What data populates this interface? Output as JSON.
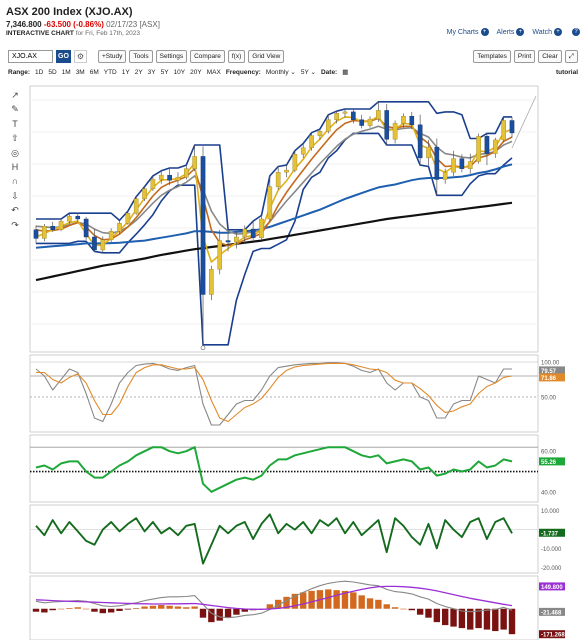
{
  "header": {
    "title": "ASX 200 Index (XJO.AX)",
    "price": "7,346.800",
    "change": "-63.500 (-0.86%)",
    "meta": "02/17/23 [ASX]",
    "subtitle": "INTERACTIVE CHART",
    "subtitle_date": "for Fri, Feb 17th, 2023"
  },
  "toplinks": {
    "mycharts": "My Charts",
    "alerts": "Alerts",
    "watch": "Watch",
    "help": "?"
  },
  "toolbar": {
    "symbol": "XJO.AX",
    "go": "GO",
    "gear": "⚙",
    "buttons": [
      "+Study",
      "Tools",
      "Settings",
      "Compare",
      "f(x)",
      "Grid View"
    ],
    "right_buttons": [
      "Templates",
      "Print",
      "Clear",
      "⤢"
    ]
  },
  "rangebar": {
    "range_label": "Range:",
    "ranges": [
      "1D",
      "5D",
      "1M",
      "3M",
      "6M",
      "YTD",
      "1Y",
      "2Y",
      "3Y",
      "5Y",
      "10Y",
      "20Y",
      "MAX"
    ],
    "frequency_label": "Frequency:",
    "frequency": "Monthly ⌄",
    "period": "5Y ⌄",
    "date_label": "Date:",
    "tutorial": "tutorial"
  },
  "tools": [
    "↗",
    "✎",
    "T",
    "⇧",
    "◎",
    "H",
    "∩",
    "⇩",
    "↶",
    "↷"
  ],
  "chart_data": [
    {
      "type": "candlestick",
      "panel": "price",
      "candles": [
        {
          "o": 6000,
          "h": 6060,
          "l": 5810,
          "c": 5880
        },
        {
          "o": 5880,
          "h": 6080,
          "l": 5840,
          "c": 6050
        },
        {
          "o": 6050,
          "h": 6110,
          "l": 5970,
          "c": 6000
        },
        {
          "o": 6000,
          "h": 6160,
          "l": 5980,
          "c": 6120
        },
        {
          "o": 6120,
          "h": 6230,
          "l": 6080,
          "c": 6190
        },
        {
          "o": 6190,
          "h": 6240,
          "l": 6110,
          "c": 6150
        },
        {
          "o": 6150,
          "h": 6180,
          "l": 5860,
          "c": 5900
        },
        {
          "o": 5900,
          "h": 6010,
          "l": 5700,
          "c": 5720
        },
        {
          "o": 5720,
          "h": 5910,
          "l": 5680,
          "c": 5860
        },
        {
          "o": 5860,
          "h": 6020,
          "l": 5820,
          "c": 5980
        },
        {
          "o": 5980,
          "h": 6130,
          "l": 5940,
          "c": 6090
        },
        {
          "o": 6090,
          "h": 6260,
          "l": 6070,
          "c": 6230
        },
        {
          "o": 6230,
          "h": 6460,
          "l": 6210,
          "c": 6430
        },
        {
          "o": 6430,
          "h": 6600,
          "l": 6400,
          "c": 6570
        },
        {
          "o": 6570,
          "h": 6750,
          "l": 6540,
          "c": 6700
        },
        {
          "o": 6700,
          "h": 6820,
          "l": 6640,
          "c": 6760
        },
        {
          "o": 6760,
          "h": 6860,
          "l": 6620,
          "c": 6690
        },
        {
          "o": 6690,
          "h": 6800,
          "l": 6640,
          "c": 6730
        },
        {
          "o": 6730,
          "h": 6900,
          "l": 6700,
          "c": 6850
        },
        {
          "o": 6850,
          "h": 7180,
          "l": 6820,
          "c": 7020
        },
        {
          "o": 7020,
          "h": 7160,
          "l": 4400,
          "c": 5100
        },
        {
          "o": 5100,
          "h": 5500,
          "l": 5020,
          "c": 5450
        },
        {
          "o": 5450,
          "h": 6000,
          "l": 5380,
          "c": 5850
        },
        {
          "o": 5850,
          "h": 5990,
          "l": 5700,
          "c": 5830
        },
        {
          "o": 5830,
          "h": 5980,
          "l": 5740,
          "c": 5900
        },
        {
          "o": 5900,
          "h": 6060,
          "l": 5800,
          "c": 6010
        },
        {
          "o": 6010,
          "h": 6120,
          "l": 5860,
          "c": 5890
        },
        {
          "o": 5890,
          "h": 6200,
          "l": 5860,
          "c": 6150
        },
        {
          "o": 6150,
          "h": 6750,
          "l": 6120,
          "c": 6600
        },
        {
          "o": 6600,
          "h": 6880,
          "l": 6560,
          "c": 6800
        },
        {
          "o": 6800,
          "h": 6900,
          "l": 6730,
          "c": 6830
        },
        {
          "o": 6830,
          "h": 7100,
          "l": 6800,
          "c": 7050
        },
        {
          "o": 7050,
          "h": 7200,
          "l": 7000,
          "c": 7140
        },
        {
          "o": 7140,
          "h": 7350,
          "l": 7100,
          "c": 7310
        },
        {
          "o": 7310,
          "h": 7400,
          "l": 7250,
          "c": 7370
        },
        {
          "o": 7370,
          "h": 7600,
          "l": 7340,
          "c": 7530
        },
        {
          "o": 7530,
          "h": 7650,
          "l": 7480,
          "c": 7620
        },
        {
          "o": 7620,
          "h": 7680,
          "l": 7560,
          "c": 7640
        },
        {
          "o": 7640,
          "h": 7680,
          "l": 7480,
          "c": 7530
        },
        {
          "o": 7530,
          "h": 7600,
          "l": 7410,
          "c": 7450
        },
        {
          "o": 7450,
          "h": 7580,
          "l": 7420,
          "c": 7540
        },
        {
          "o": 7540,
          "h": 7780,
          "l": 7500,
          "c": 7660
        },
        {
          "o": 7660,
          "h": 7750,
          "l": 7180,
          "c": 7260
        },
        {
          "o": 7260,
          "h": 7520,
          "l": 7200,
          "c": 7480
        },
        {
          "o": 7480,
          "h": 7620,
          "l": 7420,
          "c": 7580
        },
        {
          "o": 7580,
          "h": 7640,
          "l": 7400,
          "c": 7460
        },
        {
          "o": 7460,
          "h": 7600,
          "l": 6900,
          "c": 7000
        },
        {
          "o": 7000,
          "h": 7250,
          "l": 6880,
          "c": 7150
        },
        {
          "o": 7150,
          "h": 7270,
          "l": 6480,
          "c": 6700
        },
        {
          "o": 6700,
          "h": 6850,
          "l": 6640,
          "c": 6800
        },
        {
          "o": 6800,
          "h": 7100,
          "l": 6750,
          "c": 6990
        },
        {
          "o": 6990,
          "h": 7050,
          "l": 6800,
          "c": 6850
        },
        {
          "o": 6850,
          "h": 7060,
          "l": 6780,
          "c": 6950
        },
        {
          "o": 6950,
          "h": 7340,
          "l": 6920,
          "c": 7300
        },
        {
          "o": 7300,
          "h": 7340,
          "l": 6900,
          "c": 7060
        },
        {
          "o": 7060,
          "h": 7280,
          "l": 7000,
          "c": 7250
        },
        {
          "o": 7250,
          "h": 7570,
          "l": 7220,
          "c": 7520
        },
        {
          "o": 7520,
          "h": 7570,
          "l": 7280,
          "c": 7347
        }
      ],
      "ma_gold": [
        5900,
        5950,
        6000,
        6050,
        6100,
        6120,
        5950,
        5780,
        5790,
        5880,
        5990,
        6110,
        6280,
        6440,
        6590,
        6690,
        6700,
        6710,
        6780,
        6930,
        5900,
        5550,
        5650,
        5740,
        5820,
        5900,
        5920,
        6000,
        6300,
        6550,
        6680,
        6850,
        6980,
        7150,
        7260,
        7400,
        7510,
        7570,
        7560,
        7500,
        7510,
        7580,
        7380,
        7400,
        7480,
        7470,
        7180,
        7130,
        6850,
        6800,
        6880,
        6860,
        6900,
        7100,
        7080,
        7150,
        7350,
        7400
      ],
      "ma_orange": [
        6000,
        5980,
        5990,
        6010,
        6060,
        6100,
        6040,
        5920,
        5860,
        5870,
        5940,
        6040,
        6170,
        6320,
        6470,
        6590,
        6650,
        6690,
        6740,
        6850,
        6450,
        6000,
        5820,
        5780,
        5800,
        5860,
        5900,
        5950,
        6120,
        6340,
        6520,
        6680,
        6830,
        6980,
        7120,
        7260,
        7390,
        7480,
        7520,
        7510,
        7510,
        7550,
        7440,
        7410,
        7440,
        7440,
        7290,
        7200,
        6990,
        6880,
        6890,
        6870,
        6880,
        7000,
        7030,
        7090,
        7230,
        7290
      ],
      "ma_gray": [
        6050,
        6040,
        6030,
        6040,
        6070,
        6100,
        6080,
        6010,
        5960,
        5950,
        5980,
        6040,
        6130,
        6250,
        6370,
        6480,
        6550,
        6600,
        6660,
        6750,
        6560,
        6260,
        6080,
        5980,
        5940,
        5950,
        5970,
        6000,
        6110,
        6260,
        6400,
        6530,
        6660,
        6790,
        6920,
        7040,
        7160,
        7260,
        7330,
        7370,
        7400,
        7440,
        7400,
        7390,
        7410,
        7420,
        7340,
        7290,
        7150,
        7060,
        7040,
        7010,
        7000,
        7050,
        7060,
        7090,
        7180,
        7230
      ],
      "ma_blue": [
        5750,
        5760,
        5770,
        5780,
        5790,
        5800,
        5810,
        5810,
        5810,
        5815,
        5820,
        5830,
        5840,
        5850,
        5870,
        5890,
        5910,
        5930,
        5950,
        5980,
        5980,
        5970,
        5960,
        5960,
        5970,
        5980,
        5990,
        6010,
        6040,
        6080,
        6120,
        6160,
        6200,
        6240,
        6280,
        6330,
        6380,
        6430,
        6470,
        6510,
        6550,
        6590,
        6610,
        6630,
        6660,
        6690,
        6710,
        6720,
        6720,
        6720,
        6730,
        6740,
        6760,
        6790,
        6810,
        6840,
        6880,
        6910
      ],
      "ma_black": [
        5300,
        5325,
        5350,
        5375,
        5400,
        5425,
        5450,
        5475,
        5500,
        5520,
        5540,
        5560,
        5580,
        5600,
        5625,
        5650,
        5670,
        5690,
        5710,
        5730,
        5745,
        5760,
        5775,
        5790,
        5805,
        5820,
        5835,
        5850,
        5870,
        5890,
        5910,
        5930,
        5950,
        5970,
        5990,
        6010,
        6030,
        6050,
        6070,
        6090,
        6110,
        6130,
        6150,
        6165,
        6180,
        6195,
        6210,
        6225,
        6240,
        6255,
        6270,
        6285,
        6300,
        6315,
        6330,
        6345,
        6360,
        6375
      ],
      "channel_upper": [
        6150,
        6150,
        6150,
        6150,
        6230,
        6230,
        6230,
        6230,
        6230,
        6230,
        6130,
        6260,
        6460,
        6600,
        6750,
        6820,
        6860,
        6860,
        6900,
        7180,
        7180,
        7180,
        7180,
        6000,
        6000,
        6000,
        6120,
        6200,
        6750,
        6880,
        6900,
        7100,
        7200,
        7350,
        7400,
        7600,
        7650,
        7680,
        7680,
        7680,
        7680,
        7780,
        7780,
        7780,
        7780,
        7780,
        7780,
        7780,
        7620,
        7640,
        7640,
        7600,
        7270,
        7270,
        7340,
        7340,
        7570,
        7570
      ],
      "channel_lower": [
        5810,
        5810,
        5810,
        5810,
        5810,
        5840,
        5840,
        5700,
        5680,
        5680,
        5680,
        5820,
        5940,
        6070,
        6210,
        6400,
        6540,
        6620,
        6620,
        6620,
        4400,
        4400,
        4400,
        4400,
        5020,
        5380,
        5700,
        5740,
        5740,
        5800,
        5860,
        6120,
        6560,
        6730,
        6800,
        7000,
        7100,
        7250,
        7340,
        7340,
        7340,
        7340,
        7180,
        7180,
        7180,
        7180,
        6900,
        6880,
        6480,
        6480,
        6480,
        6480,
        6640,
        6750,
        6780,
        6780,
        6900,
        7000
      ],
      "ylim": [
        4300,
        8000
      ]
    },
    {
      "type": "line",
      "panel": "stochastic",
      "axis_labels": [
        "100.00",
        "50.00"
      ],
      "value_labels": [
        "79.57",
        "71.86"
      ],
      "series_gray": [
        90,
        80,
        60,
        75,
        90,
        85,
        55,
        20,
        15,
        40,
        70,
        85,
        95,
        97,
        98,
        95,
        90,
        88,
        92,
        95,
        40,
        10,
        10,
        25,
        40,
        45,
        45,
        60,
        80,
        92,
        94,
        96,
        97,
        98,
        98,
        99,
        99,
        98,
        94,
        88,
        85,
        90,
        70,
        60,
        70,
        70,
        50,
        45,
        20,
        20,
        40,
        45,
        45,
        80,
        75,
        70,
        90,
        90
      ],
      "series_orange": [
        85,
        85,
        75,
        70,
        78,
        83,
        70,
        45,
        25,
        25,
        40,
        65,
        85,
        92,
        96,
        96,
        93,
        90,
        90,
        92,
        75,
        45,
        20,
        15,
        25,
        35,
        40,
        48,
        62,
        78,
        88,
        93,
        95,
        96,
        97,
        98,
        98,
        98,
        96,
        93,
        90,
        89,
        85,
        74,
        70,
        70,
        62,
        52,
        38,
        28,
        30,
        36,
        40,
        55,
        65,
        70,
        78,
        80
      ],
      "ylim": [
        0,
        110
      ]
    },
    {
      "type": "line",
      "panel": "rsi",
      "axis_labels": [
        "60.00",
        "40.00"
      ],
      "value_labels": [
        "55.26"
      ],
      "series": [
        52,
        53,
        51,
        54,
        55,
        55,
        50,
        47,
        47,
        50,
        53,
        55,
        58,
        60,
        62,
        62,
        60,
        59,
        60,
        62,
        44,
        40,
        42,
        44,
        46,
        47,
        46,
        48,
        53,
        56,
        56,
        58,
        59,
        60,
        61,
        62,
        62,
        62,
        60,
        58,
        57,
        58,
        54,
        55,
        56,
        55,
        51,
        52,
        48,
        49,
        51,
        50,
        51,
        55,
        52,
        53,
        56,
        55
      ],
      "ylim": [
        35,
        68
      ]
    },
    {
      "type": "line",
      "panel": "oscillator",
      "axis_labels": [
        "10.000",
        "-10.000",
        "-20.000"
      ],
      "value_labels": [
        "-1.737"
      ],
      "series": [
        2,
        -3,
        5,
        -2,
        4,
        -1,
        -6,
        -8,
        0,
        4,
        -1,
        3,
        6,
        -1,
        4,
        -2,
        1,
        -3,
        2,
        3,
        -18,
        -8,
        2,
        -2,
        2,
        4,
        -5,
        3,
        8,
        -2,
        3,
        0,
        4,
        -2,
        5,
        2,
        6,
        -2,
        4,
        -3,
        1,
        5,
        -12,
        6,
        2,
        -4,
        -8,
        3,
        -10,
        5,
        0,
        -4,
        4,
        6,
        -5,
        4,
        6,
        -2
      ],
      "ylim": [
        -23,
        13
      ]
    },
    {
      "type": "bar",
      "panel": "macd",
      "value_labels": [
        "149.800",
        "-21.468",
        "-171.268"
      ],
      "histogram": [
        -20,
        -25,
        -10,
        0,
        5,
        10,
        0,
        -20,
        -30,
        -25,
        -15,
        -5,
        5,
        15,
        20,
        25,
        20,
        15,
        10,
        15,
        -60,
        -90,
        -80,
        -60,
        -40,
        -20,
        -10,
        0,
        30,
        60,
        80,
        100,
        110,
        120,
        125,
        130,
        125,
        120,
        110,
        90,
        70,
        60,
        30,
        10,
        0,
        -10,
        -40,
        -60,
        -90,
        -110,
        -120,
        -130,
        -140,
        -130,
        -140,
        -150,
        -140,
        -171
      ],
      "signal_purple": [
        60,
        58,
        55,
        52,
        50,
        48,
        46,
        44,
        42,
        40,
        38,
        36,
        34,
        33,
        32,
        32,
        33,
        33,
        34,
        35,
        30,
        22,
        15,
        8,
        2,
        -2,
        -4,
        -4,
        -2,
        2,
        10,
        20,
        32,
        46,
        60,
        75,
        90,
        105,
        118,
        130,
        140,
        148,
        150,
        150,
        148,
        144,
        138,
        130,
        120,
        108,
        95,
        82,
        70,
        60,
        50,
        40,
        30,
        21
      ],
      "line_gray": [
        50,
        40,
        45,
        48,
        52,
        55,
        50,
        35,
        20,
        15,
        20,
        30,
        40,
        55,
        65,
        75,
        80,
        80,
        82,
        88,
        30,
        -30,
        -55,
        -60,
        -55,
        -45,
        -40,
        -30,
        -5,
        25,
        55,
        85,
        110,
        135,
        155,
        170,
        180,
        185,
        180,
        170,
        160,
        155,
        130,
        115,
        110,
        100,
        80,
        65,
        35,
        15,
        0,
        -15,
        -20,
        -15,
        -10,
        -5,
        10,
        -10
      ],
      "ylim": [
        -210,
        220
      ]
    }
  ]
}
